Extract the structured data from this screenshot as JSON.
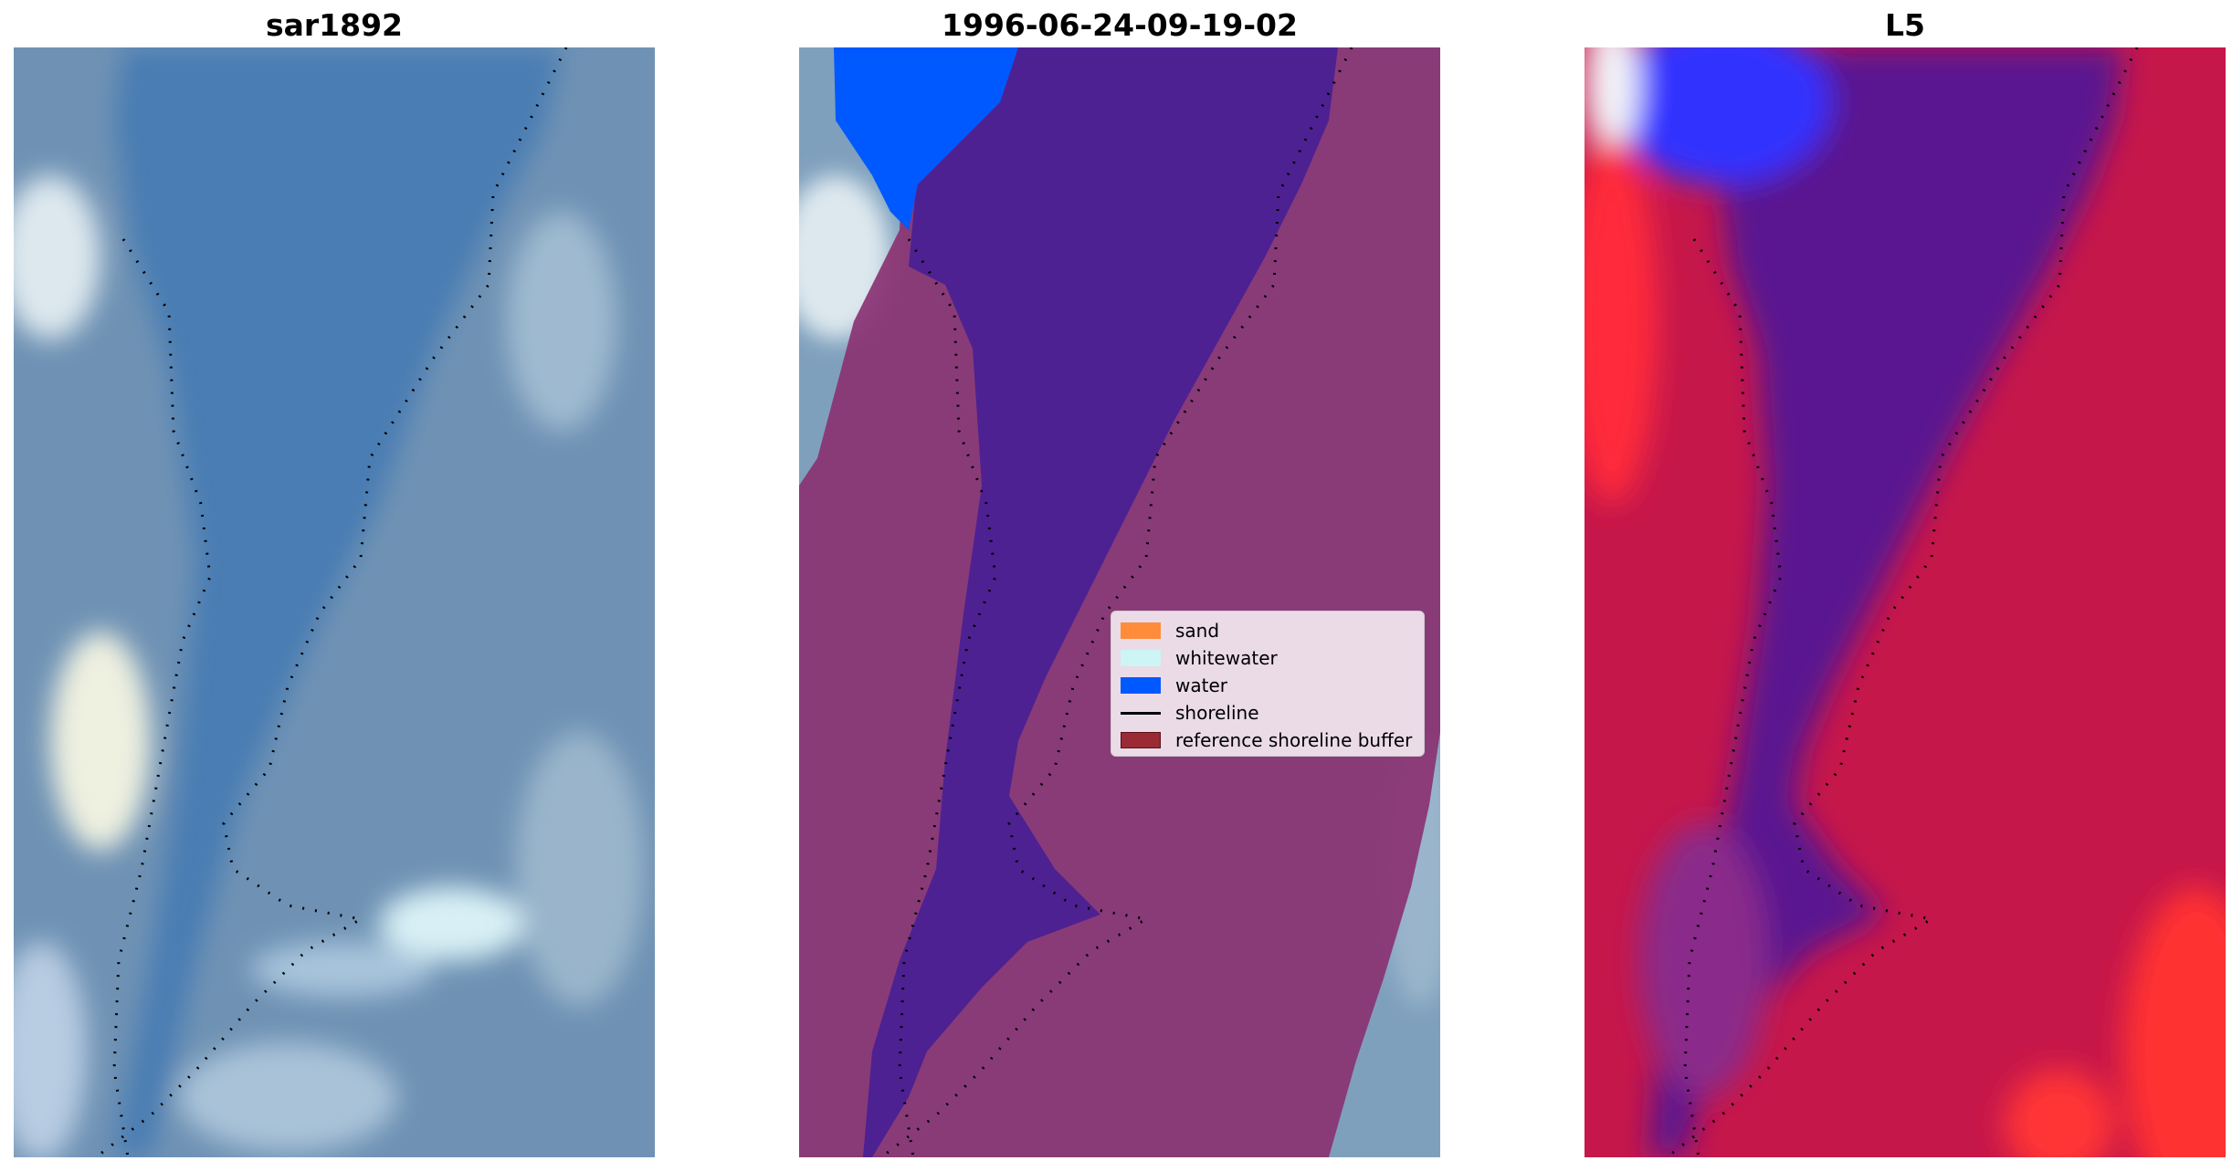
{
  "panels": [
    {
      "title": "sar1892"
    },
    {
      "title": "1996-06-24-09-19-02"
    },
    {
      "title": "L5"
    }
  ],
  "legend": {
    "items": [
      {
        "label": "sand",
        "color": "#ff8c3a"
      },
      {
        "label": "whitewater",
        "color": "#cdf5f5"
      },
      {
        "label": "water",
        "color": "#0059ff"
      },
      {
        "label": "shoreline",
        "color": "#000000"
      },
      {
        "label": "reference shoreline buffer",
        "color": "#9a2a34"
      }
    ]
  },
  "colors": {
    "ocean": "#4f7fb0",
    "land_bg": "#7fa0bd",
    "buffer_overlay": "#8a3272",
    "water_class": "#4e2192",
    "water_patch": "#0059ff",
    "index_land": "#c6174a",
    "index_water": "#5a1490",
    "index_wet": "#3030ff"
  }
}
